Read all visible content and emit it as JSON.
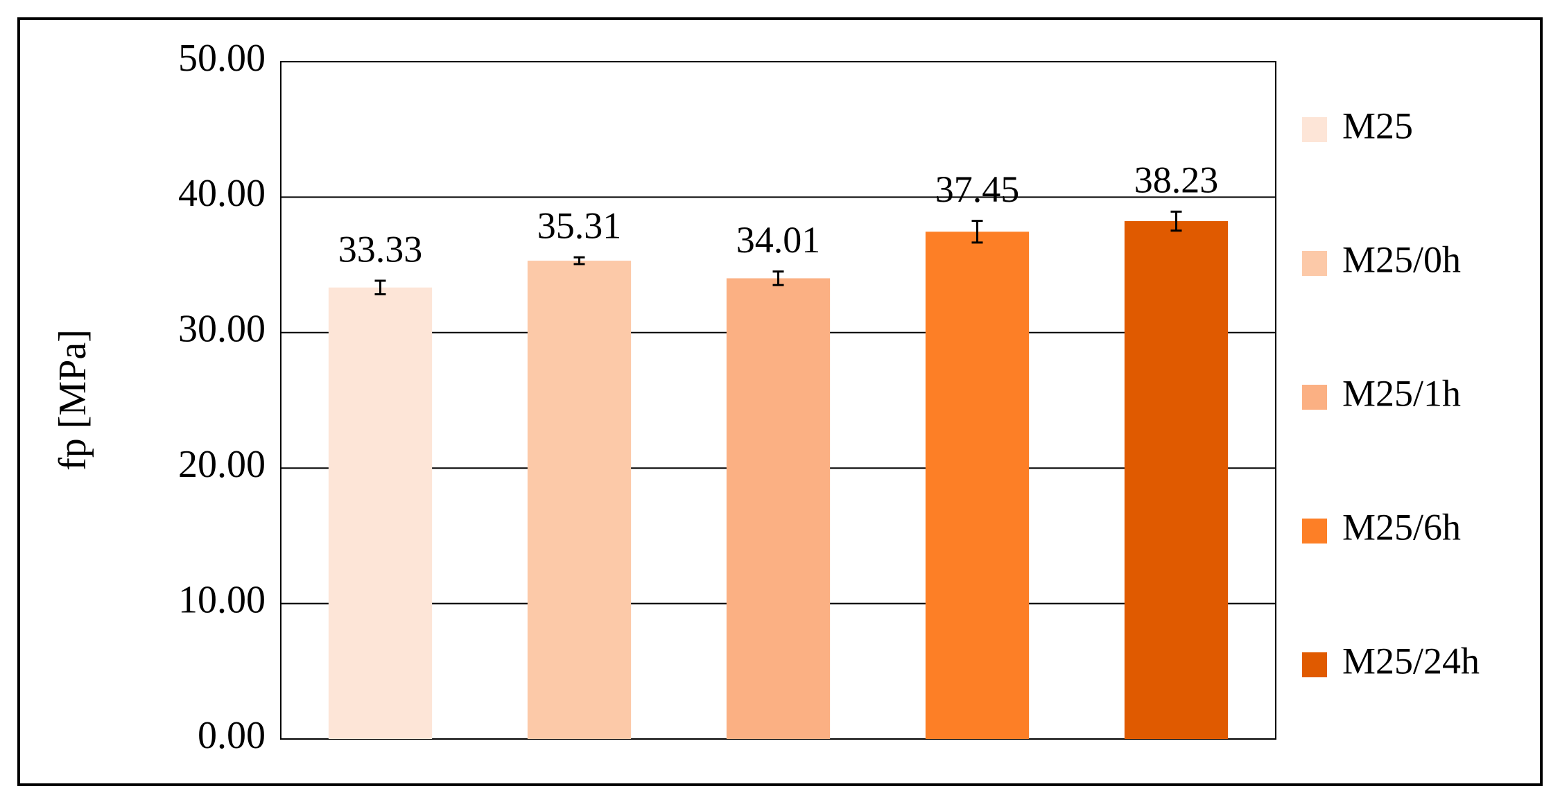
{
  "chart_data": {
    "type": "bar",
    "y_label": "fp [MPa]",
    "series": [
      {
        "name": "M25",
        "color": "#fde5d7",
        "values": [
          33.33
        ],
        "errors": [
          0.5
        ]
      },
      {
        "name": "M25/0h",
        "color": "#fcc9a8",
        "values": [
          35.31
        ],
        "errors": [
          0.25
        ]
      },
      {
        "name": "M25/1h",
        "color": "#fbb083",
        "values": [
          34.01
        ],
        "errors": [
          0.5
        ]
      },
      {
        "name": "M25/6h",
        "color": "#fd7f26",
        "values": [
          37.45
        ],
        "errors": [
          0.8
        ]
      },
      {
        "name": "M25/24h",
        "color": "#e05a00",
        "values": [
          38.23
        ],
        "errors": [
          0.7
        ]
      }
    ],
    "ylim": [
      0,
      50
    ],
    "yticks": [
      {
        "value": 0,
        "label": "0.00"
      },
      {
        "value": 10,
        "label": "10.00"
      },
      {
        "value": 20,
        "label": "20.00"
      },
      {
        "value": 30,
        "label": "30.00"
      },
      {
        "value": 40,
        "label": "40.00"
      },
      {
        "value": 50,
        "label": "50.00"
      }
    ],
    "grid": true,
    "legend": "right"
  }
}
